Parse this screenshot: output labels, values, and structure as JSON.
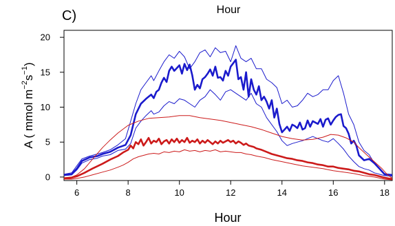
{
  "chart_data": {
    "type": "line",
    "panel_label": "C)",
    "top_title": "Hour",
    "xlabel": "Hour",
    "ylabel": {
      "prefix": "A ( mmol m",
      "exp1": "−2",
      "mid": "s",
      "exp2": "−1",
      "suffix": ")"
    },
    "xlim": [
      5.5,
      18.3
    ],
    "ylim": [
      -0.5,
      21
    ],
    "xticks": [
      6,
      8,
      10,
      12,
      14,
      16,
      18
    ],
    "yticks": [
      0,
      5,
      10,
      15,
      20
    ],
    "grid": false,
    "legend": "none",
    "colors": {
      "blue": "#1a1acc",
      "red": "#cc1a1a"
    },
    "series": [
      {
        "color": "blue",
        "role": "mean",
        "x": [
          5.5,
          5.8,
          6.0,
          6.2,
          6.5,
          6.8,
          7.0,
          7.3,
          7.6,
          7.9,
          8.1,
          8.3,
          8.5,
          8.7,
          8.9,
          9.0,
          9.1,
          9.2,
          9.3,
          9.4,
          9.5,
          9.6,
          9.7,
          9.8,
          9.9,
          10.0,
          10.1,
          10.2,
          10.3,
          10.4,
          10.5,
          10.6,
          10.7,
          10.8,
          10.9,
          11.0,
          11.1,
          11.2,
          11.3,
          11.4,
          11.5,
          11.6,
          11.7,
          11.8,
          11.9,
          12.0,
          12.1,
          12.2,
          12.3,
          12.4,
          12.5,
          12.6,
          12.7,
          12.8,
          12.9,
          13.0,
          13.1,
          13.2,
          13.3,
          13.4,
          13.5,
          13.6,
          13.7,
          13.8,
          13.9,
          14.0,
          14.1,
          14.2,
          14.3,
          14.4,
          14.5,
          14.6,
          14.7,
          14.8,
          14.9,
          15.0,
          15.1,
          15.2,
          15.3,
          15.4,
          15.5,
          15.6,
          15.7,
          15.8,
          15.9,
          16.0,
          16.1,
          16.2,
          16.3,
          16.4,
          16.5,
          16.6,
          16.7,
          16.8,
          16.9,
          17.0,
          17.2,
          17.4,
          17.6,
          17.8,
          18.0,
          18.3
        ],
        "y": [
          0.3,
          0.4,
          1.2,
          2.3,
          2.8,
          3.0,
          3.3,
          3.6,
          4.2,
          4.6,
          6.0,
          9.0,
          10.5,
          11.2,
          11.8,
          11.3,
          12.2,
          12.5,
          13.5,
          14.2,
          13.6,
          15.2,
          15.8,
          15.2,
          15.6,
          16.0,
          14.8,
          16.2,
          15.3,
          16.1,
          14.6,
          12.5,
          13.2,
          12.7,
          14.0,
          14.3,
          14.8,
          15.4,
          14.5,
          15.8,
          14.2,
          14.3,
          13.8,
          15.2,
          14.5,
          15.8,
          16.3,
          16.8,
          14.0,
          14.3,
          12.5,
          15.0,
          11.5,
          14.0,
          12.5,
          11.8,
          13.0,
          11.0,
          11.5,
          10.8,
          9.8,
          11.0,
          8.5,
          9.8,
          7.6,
          6.4,
          6.8,
          7.2,
          6.6,
          7.5,
          7.3,
          7.0,
          7.8,
          6.8,
          7.0,
          8.1,
          7.2,
          8.0,
          7.8,
          7.6,
          8.3,
          7.2,
          8.2,
          8.4,
          7.5,
          8.1,
          8.6,
          8.9,
          9.0,
          7.3,
          7.0,
          6.2,
          4.8,
          5.2,
          4.5,
          3.1,
          2.4,
          2.6,
          2.0,
          1.2,
          0.4,
          0.3
        ]
      },
      {
        "color": "blue",
        "role": "upper",
        "x": [
          5.5,
          5.8,
          6.0,
          6.2,
          6.5,
          6.8,
          7.0,
          7.3,
          7.6,
          7.9,
          8.1,
          8.3,
          8.5,
          8.7,
          8.9,
          9.0,
          9.2,
          9.4,
          9.6,
          9.8,
          10.0,
          10.2,
          10.4,
          10.6,
          10.8,
          11.0,
          11.2,
          11.4,
          11.6,
          11.8,
          12.0,
          12.2,
          12.4,
          12.6,
          12.8,
          13.0,
          13.2,
          13.4,
          13.6,
          13.8,
          14.0,
          14.2,
          14.4,
          14.6,
          14.8,
          15.0,
          15.2,
          15.4,
          15.6,
          15.8,
          16.0,
          16.2,
          16.4,
          16.6,
          16.8,
          17.0,
          17.2,
          17.4,
          17.6,
          17.8,
          18.0,
          18.3
        ],
        "y": [
          0.4,
          0.6,
          1.6,
          2.6,
          3.0,
          3.3,
          3.5,
          3.9,
          4.6,
          5.5,
          8.0,
          10.5,
          12.5,
          13.5,
          14.5,
          13.8,
          15.2,
          16.5,
          17.5,
          17.0,
          18.0,
          17.2,
          15.5,
          16.5,
          17.8,
          18.2,
          17.2,
          18.5,
          17.8,
          18.0,
          16.5,
          18.8,
          17.0,
          16.5,
          17.0,
          15.5,
          15.5,
          14.0,
          13.5,
          12.8,
          10.5,
          11.0,
          10.0,
          10.2,
          11.0,
          12.0,
          11.5,
          11.8,
          12.5,
          12.5,
          13.8,
          14.5,
          12.0,
          9.0,
          7.5,
          5.0,
          3.8,
          3.2,
          2.0,
          1.2,
          0.5,
          0.3
        ]
      },
      {
        "color": "blue",
        "role": "lower",
        "x": [
          5.5,
          5.8,
          6.0,
          6.2,
          6.5,
          6.8,
          7.0,
          7.3,
          7.6,
          7.9,
          8.1,
          8.3,
          8.5,
          8.7,
          8.9,
          9.0,
          9.2,
          9.4,
          9.6,
          9.8,
          10.0,
          10.2,
          10.4,
          10.6,
          10.8,
          11.0,
          11.2,
          11.4,
          11.6,
          11.8,
          12.0,
          12.2,
          12.4,
          12.6,
          12.8,
          13.0,
          13.2,
          13.4,
          13.6,
          13.8,
          14.0,
          14.2,
          14.4,
          14.6,
          14.8,
          15.0,
          15.2,
          15.4,
          15.6,
          15.8,
          16.0,
          16.2,
          16.4,
          16.6,
          16.8,
          17.0,
          17.2,
          17.4,
          17.6,
          17.8,
          18.0,
          18.3
        ],
        "y": [
          0.2,
          0.3,
          1.0,
          2.0,
          2.5,
          2.7,
          3.0,
          3.2,
          3.8,
          4.0,
          4.8,
          7.0,
          8.0,
          8.8,
          9.5,
          9.0,
          9.3,
          10.2,
          10.8,
          10.5,
          11.2,
          11.0,
          10.5,
          10.0,
          11.0,
          11.5,
          12.5,
          11.8,
          11.0,
          12.2,
          12.5,
          12.0,
          11.5,
          11.0,
          12.0,
          10.5,
          10.0,
          8.5,
          7.5,
          6.5,
          5.2,
          4.5,
          4.8,
          5.0,
          5.2,
          5.5,
          5.8,
          5.5,
          5.2,
          5.0,
          5.5,
          4.8,
          4.0,
          3.0,
          2.2,
          1.5,
          1.2,
          1.0,
          0.6,
          0.4,
          0.2,
          0.1
        ]
      },
      {
        "color": "red",
        "role": "mean",
        "x": [
          5.5,
          5.8,
          6.0,
          6.3,
          6.6,
          7.0,
          7.3,
          7.6,
          7.8,
          8.0,
          8.1,
          8.2,
          8.3,
          8.4,
          8.5,
          8.6,
          8.7,
          8.8,
          8.9,
          9.0,
          9.1,
          9.2,
          9.3,
          9.4,
          9.5,
          9.6,
          9.7,
          9.8,
          9.9,
          10.0,
          10.1,
          10.2,
          10.3,
          10.4,
          10.5,
          10.6,
          10.7,
          10.8,
          10.9,
          11.0,
          11.1,
          11.2,
          11.3,
          11.4,
          11.5,
          11.6,
          11.7,
          11.8,
          11.9,
          12.0,
          12.1,
          12.2,
          12.3,
          12.4,
          12.5,
          12.6,
          12.7,
          12.8,
          12.9,
          13.0,
          13.2,
          13.4,
          13.6,
          13.8,
          14.0,
          14.2,
          14.4,
          14.6,
          14.8,
          15.0,
          15.2,
          15.4,
          15.6,
          15.8,
          16.0,
          16.2,
          16.4,
          16.6,
          16.8,
          17.0,
          17.2,
          17.4,
          17.6,
          17.8,
          18.0,
          18.3
        ],
        "y": [
          -0.2,
          -0.1,
          0.1,
          0.6,
          1.2,
          1.9,
          2.5,
          3.0,
          3.5,
          3.9,
          4.5,
          4.1,
          5.0,
          4.7,
          5.4,
          4.5,
          5.0,
          5.6,
          4.8,
          5.2,
          5.0,
          5.5,
          4.7,
          5.1,
          5.3,
          4.8,
          5.4,
          5.0,
          5.5,
          4.9,
          5.3,
          5.0,
          5.6,
          4.9,
          5.2,
          5.0,
          5.4,
          4.8,
          5.2,
          4.9,
          5.3,
          5.0,
          4.7,
          5.1,
          4.8,
          5.2,
          4.9,
          5.1,
          5.3,
          5.0,
          5.2,
          4.8,
          5.1,
          4.9,
          4.6,
          4.8,
          4.5,
          4.4,
          4.3,
          4.1,
          3.9,
          3.6,
          3.3,
          3.1,
          2.9,
          2.7,
          2.6,
          2.4,
          2.3,
          2.1,
          2.0,
          1.8,
          1.7,
          1.5,
          1.5,
          1.3,
          1.2,
          1.1,
          0.9,
          0.8,
          0.6,
          0.4,
          0.3,
          0.1,
          -0.1,
          -0.3
        ]
      },
      {
        "color": "red",
        "role": "upper",
        "x": [
          5.5,
          5.8,
          6.0,
          6.3,
          6.6,
          7.0,
          7.3,
          7.6,
          8.0,
          8.4,
          8.8,
          9.2,
          9.6,
          10.0,
          10.4,
          10.8,
          11.2,
          11.6,
          12.0,
          12.4,
          12.8,
          13.2,
          13.6,
          14.0,
          14.4,
          14.8,
          15.2,
          15.6,
          15.9,
          16.2,
          16.5,
          16.8,
          17.0,
          17.3,
          17.6,
          17.9,
          18.1,
          18.3
        ],
        "y": [
          -0.1,
          0.0,
          0.3,
          1.2,
          2.5,
          4.2,
          5.3,
          6.3,
          7.4,
          8.0,
          8.4,
          8.5,
          8.6,
          8.8,
          8.8,
          8.5,
          8.3,
          8.1,
          7.8,
          7.5,
          7.2,
          6.8,
          6.3,
          5.8,
          5.5,
          5.3,
          5.4,
          5.7,
          6.1,
          6.0,
          5.6,
          5.0,
          4.2,
          3.2,
          2.2,
          1.2,
          0.4,
          -0.2
        ]
      },
      {
        "color": "red",
        "role": "lower",
        "x": [
          5.5,
          5.8,
          6.0,
          6.3,
          6.6,
          7.0,
          7.3,
          7.6,
          7.8,
          8.0,
          8.2,
          8.4,
          8.6,
          8.8,
          9.0,
          9.2,
          9.4,
          9.6,
          9.8,
          10.0,
          10.2,
          10.4,
          10.6,
          10.8,
          11.0,
          11.2,
          11.4,
          11.6,
          11.8,
          12.0,
          12.2,
          12.4,
          12.6,
          12.8,
          13.0,
          13.3,
          13.6,
          14.0,
          14.4,
          14.8,
          15.2,
          15.6,
          16.0,
          16.4,
          16.8,
          17.2,
          17.6,
          18.0,
          18.3
        ],
        "y": [
          -0.3,
          -0.3,
          -0.2,
          0.0,
          0.3,
          0.7,
          1.0,
          1.4,
          1.7,
          2.1,
          2.6,
          2.9,
          3.1,
          3.3,
          3.4,
          3.3,
          3.6,
          3.5,
          3.7,
          3.6,
          3.9,
          3.7,
          3.8,
          3.6,
          3.8,
          3.7,
          3.9,
          3.6,
          3.7,
          3.6,
          3.5,
          3.5,
          3.3,
          3.2,
          3.0,
          2.8,
          2.5,
          2.2,
          1.9,
          1.6,
          1.4,
          1.2,
          0.9,
          0.7,
          0.5,
          0.2,
          0.0,
          -0.3,
          -0.4
        ]
      }
    ]
  }
}
